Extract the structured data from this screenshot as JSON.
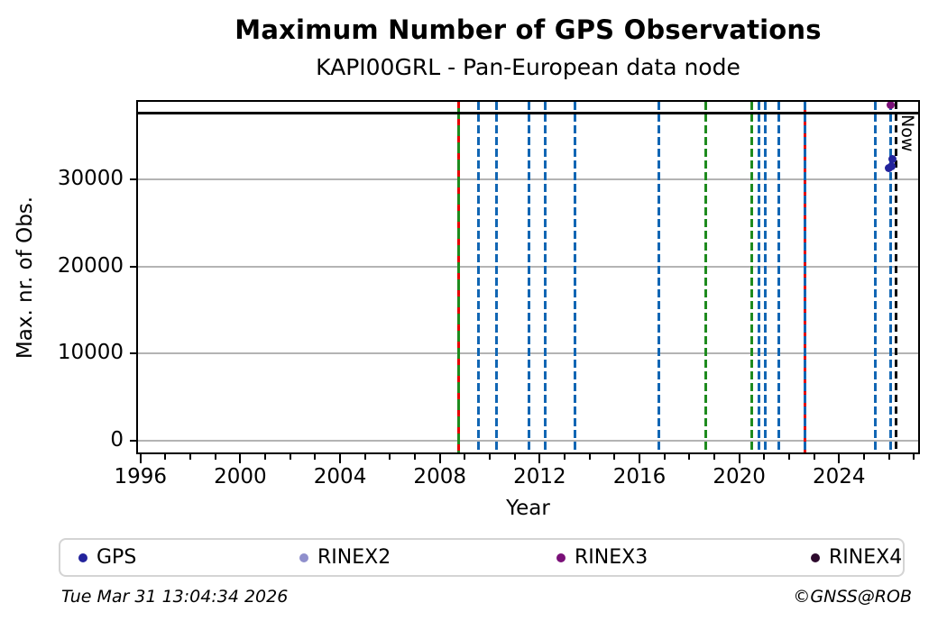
{
  "chart_data": {
    "type": "scatter",
    "title": "Maximum Number of GPS Observations",
    "subtitle": "KAPI00GRL - Pan-European data node",
    "xlabel": "Year",
    "ylabel": "Max. nr. of Obs.",
    "xlim": [
      1995.9,
      2027.17
    ],
    "ylim": [
      -1350,
      38900
    ],
    "x_major_ticks": [
      1996,
      2000,
      2004,
      2008,
      2012,
      2016,
      2020,
      2024
    ],
    "x_minor_tick_step": 1,
    "y_ticks": [
      0,
      10000,
      20000,
      30000
    ],
    "grid": true,
    "grid_color": "#b4b4b4",
    "series": [
      {
        "name": "GPS",
        "color": "#23239c",
        "points": [
          [
            2026.0,
            31300
          ],
          [
            2026.1,
            31550
          ],
          [
            2026.13,
            32350
          ]
        ]
      },
      {
        "name": "RINEX2",
        "color": "#8f8fcc",
        "points": []
      },
      {
        "name": "RINEX3",
        "color": "#7a1078",
        "points": [
          [
            2026.05,
            38500
          ]
        ]
      },
      {
        "name": "RINEX4",
        "color": "#2d0a2d",
        "points": []
      }
    ],
    "reference_line": {
      "y": 37600,
      "color": "#000000"
    },
    "event_lines": [
      {
        "x": 2008.74,
        "color": "#1e8b1e",
        "style": "solid",
        "overlay": {
          "color": "#e60000",
          "dash_on": 7,
          "dash_off": 12
        }
      },
      {
        "x": 2009.55,
        "color": "#1166b4",
        "style": "dashed"
      },
      {
        "x": 2010.27,
        "color": "#1166b4",
        "style": "dashed"
      },
      {
        "x": 2011.57,
        "color": "#1166b4",
        "style": "dashed"
      },
      {
        "x": 2012.23,
        "color": "#1166b4",
        "style": "dashed"
      },
      {
        "x": 2013.42,
        "color": "#1166b4",
        "style": "dashed"
      },
      {
        "x": 2016.77,
        "color": "#1166b4",
        "style": "dashed"
      },
      {
        "x": 2018.65,
        "color": "#1e8b1e",
        "style": "dashed"
      },
      {
        "x": 2020.5,
        "color": "#1e8b1e",
        "style": "dashed"
      },
      {
        "x": 2020.78,
        "color": "#1166b4",
        "style": "dashed"
      },
      {
        "x": 2021.05,
        "color": "#1166b4",
        "style": "dashed"
      },
      {
        "x": 2021.6,
        "color": "#1166b4",
        "style": "dashed"
      },
      {
        "x": 2022.65,
        "color": "#e60000",
        "style": "solid",
        "overlay": {
          "color": "#1166b4",
          "dash_on": 9,
          "dash_off": 4
        }
      },
      {
        "x": 2025.45,
        "color": "#1166b4",
        "style": "dashed"
      },
      {
        "x": 2026.08,
        "color": "#1166b4",
        "style": "dashed"
      }
    ],
    "now_line": {
      "x": 2026.27,
      "label": "Now",
      "color": "#000000",
      "style": "dashed"
    },
    "legend_position": "bottom"
  },
  "legend": {
    "items": [
      {
        "label": "GPS",
        "color": "#23239c"
      },
      {
        "label": "RINEX2",
        "color": "#8f8fcc"
      },
      {
        "label": "RINEX3",
        "color": "#7a1078"
      },
      {
        "label": "RINEX4",
        "color": "#2d0a2d"
      }
    ]
  },
  "footer": {
    "timestamp": "Tue Mar 31 13:04:34 2026",
    "copyright": "©GNSS@ROB"
  }
}
